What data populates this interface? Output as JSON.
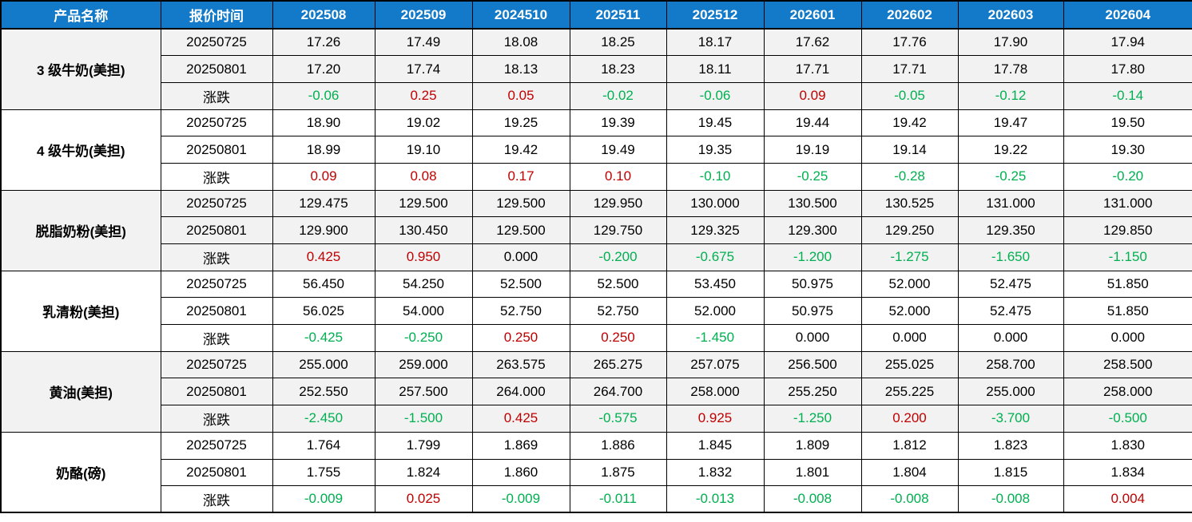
{
  "header": {
    "product_col": "产品名称",
    "time_col": "报价时间",
    "months": [
      "202508",
      "202509",
      "2024510",
      "202511",
      "202512",
      "202601",
      "202602",
      "202603",
      "202604"
    ]
  },
  "colors": {
    "header_bg": "#127ac9",
    "header_text": "#ffffff",
    "up": "#c00000",
    "down": "#00b050",
    "flat": "#000000",
    "band_odd": "#f2f2f2",
    "band_even": "#ffffff",
    "border": "#000000"
  },
  "products": [
    {
      "name": "3 级牛奶(美担)",
      "rows": [
        {
          "label": "20250725",
          "type": "price",
          "values": [
            "17.26",
            "17.49",
            "18.08",
            "18.25",
            "18.17",
            "17.62",
            "17.76",
            "17.90",
            "17.94"
          ]
        },
        {
          "label": "20250801",
          "type": "price",
          "values": [
            "17.20",
            "17.74",
            "18.13",
            "18.23",
            "18.11",
            "17.71",
            "17.71",
            "17.78",
            "17.80"
          ]
        },
        {
          "label": "涨跌",
          "type": "change",
          "values": [
            "-0.06",
            "0.25",
            "0.05",
            "-0.02",
            "-0.06",
            "0.09",
            "-0.05",
            "-0.12",
            "-0.14"
          ]
        }
      ]
    },
    {
      "name": "4 级牛奶(美担)",
      "rows": [
        {
          "label": "20250725",
          "type": "price",
          "values": [
            "18.90",
            "19.02",
            "19.25",
            "19.39",
            "19.45",
            "19.44",
            "19.42",
            "19.47",
            "19.50"
          ]
        },
        {
          "label": "20250801",
          "type": "price",
          "values": [
            "18.99",
            "19.10",
            "19.42",
            "19.49",
            "19.35",
            "19.19",
            "19.14",
            "19.22",
            "19.30"
          ]
        },
        {
          "label": "涨跌",
          "type": "change",
          "values": [
            "0.09",
            "0.08",
            "0.17",
            "0.10",
            "-0.10",
            "-0.25",
            "-0.28",
            "-0.25",
            "-0.20"
          ]
        }
      ]
    },
    {
      "name": "脱脂奶粉(美担)",
      "rows": [
        {
          "label": "20250725",
          "type": "price",
          "values": [
            "129.475",
            "129.500",
            "129.500",
            "129.950",
            "130.000",
            "130.500",
            "130.525",
            "131.000",
            "131.000"
          ]
        },
        {
          "label": "20250801",
          "type": "price",
          "values": [
            "129.900",
            "130.450",
            "129.500",
            "129.750",
            "129.325",
            "129.300",
            "129.250",
            "129.350",
            "129.850"
          ]
        },
        {
          "label": "涨跌",
          "type": "change",
          "values": [
            "0.425",
            "0.950",
            "0.000",
            "-0.200",
            "-0.675",
            "-1.200",
            "-1.275",
            "-1.650",
            "-1.150"
          ]
        }
      ]
    },
    {
      "name": "乳清粉(美担)",
      "rows": [
        {
          "label": "20250725",
          "type": "price",
          "values": [
            "56.450",
            "54.250",
            "52.500",
            "52.500",
            "53.450",
            "50.975",
            "52.000",
            "52.475",
            "51.850"
          ]
        },
        {
          "label": "20250801",
          "type": "price",
          "values": [
            "56.025",
            "54.000",
            "52.750",
            "52.750",
            "52.000",
            "50.975",
            "52.000",
            "52.475",
            "51.850"
          ]
        },
        {
          "label": "涨跌",
          "type": "change",
          "values": [
            "-0.425",
            "-0.250",
            "0.250",
            "0.250",
            "-1.450",
            "0.000",
            "0.000",
            "0.000",
            "0.000"
          ]
        }
      ]
    },
    {
      "name": "黄油(美担)",
      "rows": [
        {
          "label": "20250725",
          "type": "price",
          "values": [
            "255.000",
            "259.000",
            "263.575",
            "265.275",
            "257.075",
            "256.500",
            "255.025",
            "258.700",
            "258.500"
          ]
        },
        {
          "label": "20250801",
          "type": "price",
          "values": [
            "252.550",
            "257.500",
            "264.000",
            "264.700",
            "258.000",
            "255.250",
            "255.225",
            "255.000",
            "258.000"
          ]
        },
        {
          "label": "涨跌",
          "type": "change",
          "values": [
            "-2.450",
            "-1.500",
            "0.425",
            "-0.575",
            "0.925",
            "-1.250",
            "0.200",
            "-3.700",
            "-0.500"
          ]
        }
      ]
    },
    {
      "name": "奶酪(磅)",
      "rows": [
        {
          "label": "20250725",
          "type": "price",
          "values": [
            "1.764",
            "1.799",
            "1.869",
            "1.886",
            "1.845",
            "1.809",
            "1.812",
            "1.823",
            "1.830"
          ]
        },
        {
          "label": "20250801",
          "type": "price",
          "values": [
            "1.755",
            "1.824",
            "1.860",
            "1.875",
            "1.832",
            "1.801",
            "1.804",
            "1.815",
            "1.834"
          ]
        },
        {
          "label": "涨跌",
          "type": "change",
          "values": [
            "-0.009",
            "0.025",
            "-0.009",
            "-0.011",
            "-0.013",
            "-0.008",
            "-0.008",
            "-0.008",
            "0.004"
          ]
        }
      ]
    }
  ]
}
